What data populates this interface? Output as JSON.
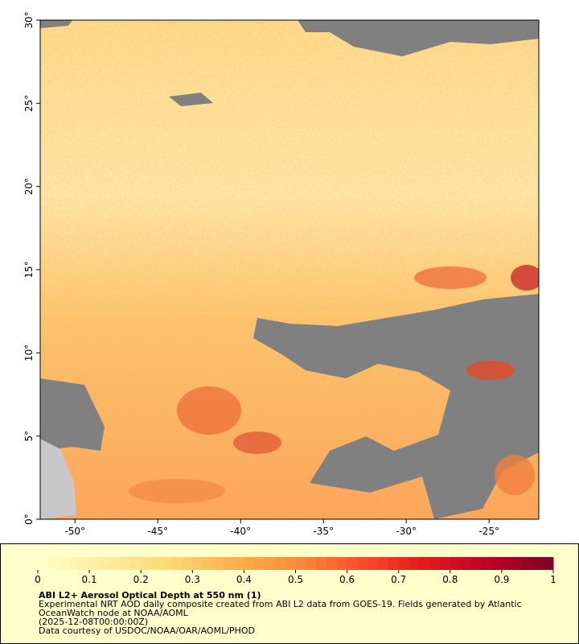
{
  "chart_data": {
    "type": "map",
    "xlim": [
      -52.1,
      -22
    ],
    "ylim": [
      0,
      30
    ],
    "xticks": [
      {
        "value": -50,
        "label": "-50°"
      },
      {
        "value": -45,
        "label": "-45°"
      },
      {
        "value": -40,
        "label": "-40°"
      },
      {
        "value": -35,
        "label": "-35°"
      },
      {
        "value": -30,
        "label": "-30°"
      },
      {
        "value": -25,
        "label": "-25°"
      }
    ],
    "yticks": [
      {
        "value": 0,
        "label": "0°"
      },
      {
        "value": 5,
        "label": "5°"
      },
      {
        "value": 10,
        "label": "10°"
      },
      {
        "value": 15,
        "label": "15°"
      },
      {
        "value": 20,
        "label": "20°"
      },
      {
        "value": 25,
        "label": "25°"
      },
      {
        "value": 30,
        "label": "30°"
      }
    ],
    "colorbar": {
      "lim": [
        0,
        1
      ],
      "ticks": [
        0,
        0.1,
        0.2,
        0.3,
        0.4,
        0.5,
        0.6,
        0.7,
        0.8,
        0.9,
        1
      ],
      "colors": [
        "#ffffcc",
        "#ffeda0",
        "#fed976",
        "#feb24c",
        "#fd8d3c",
        "#fc4e2a",
        "#e31a1c",
        "#bd0026",
        "#800026"
      ]
    },
    "title": "ABI L2+ Aerosol Optical Depth at 550 nm (1)",
    "caption": [
      "Experimental NRT AOD daily composite created from ABI L2 data from GOES-19. Fields generated by Atlantic",
      "OceanWatch node at NOAA/AOML",
      "(2025-12-08T00:00:00Z)",
      "Data courtesy of USDOC/NOAA/OAR/AOML/PHOD"
    ]
  }
}
